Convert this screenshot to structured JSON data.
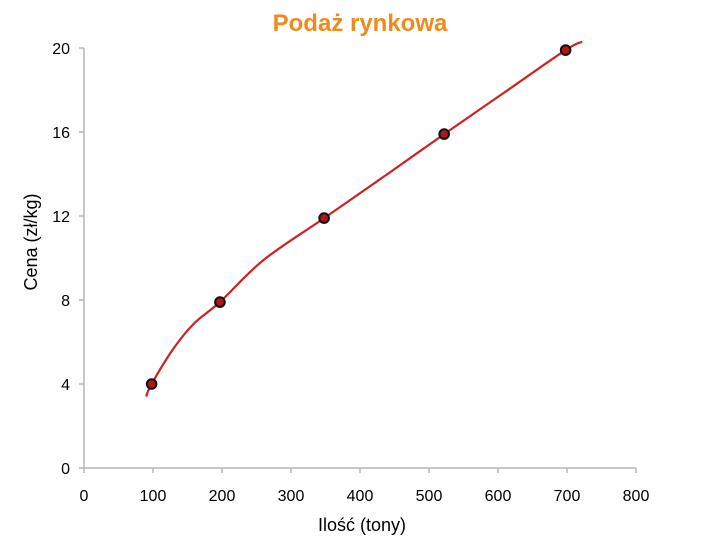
{
  "chart_data": {
    "type": "line",
    "title": "Podaż rynkowa",
    "xlabel": "Ilość (tony)",
    "ylabel": "Cena (zł/kg)",
    "xlim": [
      0,
      800
    ],
    "ylim": [
      0,
      20
    ],
    "xticks": [
      "0",
      "100",
      "200",
      "300",
      "400",
      "500",
      "600",
      "700",
      "800"
    ],
    "yticks": [
      "0",
      "4",
      "8",
      "12",
      "16",
      "20"
    ],
    "grid": false,
    "legend": "none",
    "series": [
      {
        "points": [
          {
            "x": 98,
            "y": 4
          },
          {
            "x": 197,
            "y": 7.9
          },
          {
            "x": 348,
            "y": 11.9
          },
          {
            "x": 522,
            "y": 15.9
          },
          {
            "x": 698,
            "y": 19.9
          }
        ],
        "curve": [
          {
            "x": 90,
            "y": 3.4
          },
          {
            "x": 98,
            "y": 4
          },
          {
            "x": 130,
            "y": 5.7
          },
          {
            "x": 160,
            "y": 6.9
          },
          {
            "x": 197,
            "y": 7.9
          },
          {
            "x": 260,
            "y": 9.9
          },
          {
            "x": 348,
            "y": 11.9
          },
          {
            "x": 440,
            "y": 14.0
          },
          {
            "x": 522,
            "y": 15.9
          },
          {
            "x": 610,
            "y": 17.9
          },
          {
            "x": 698,
            "y": 19.9
          },
          {
            "x": 722,
            "y": 20.3
          }
        ]
      }
    ],
    "colors": {
      "title": "#f08a1c",
      "line": "#cc2222",
      "marker_fill": "#b01818",
      "marker_edge": "#111111",
      "axis": "#b5b5b5"
    }
  }
}
